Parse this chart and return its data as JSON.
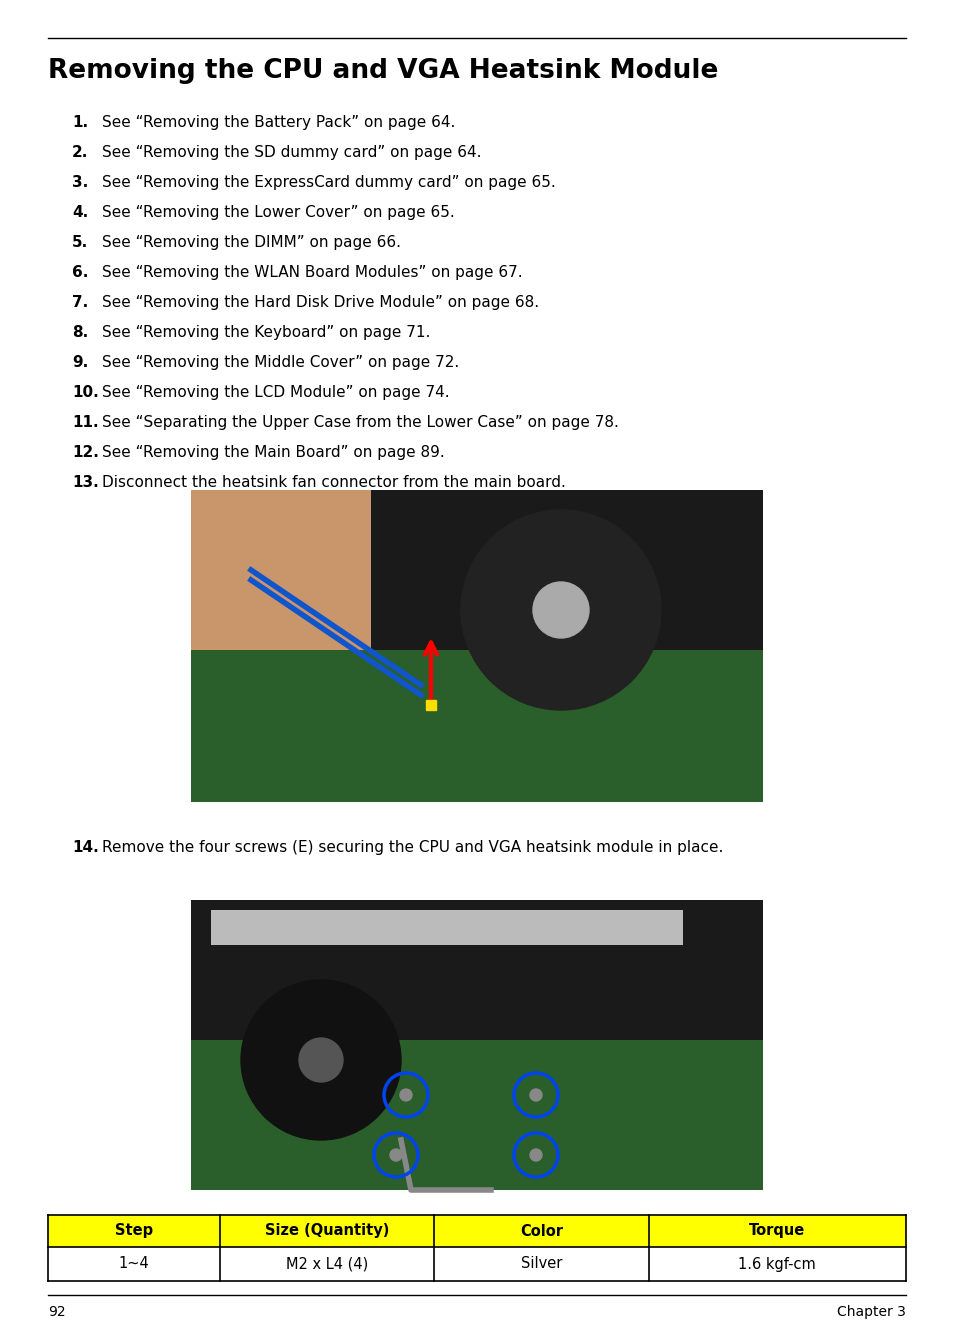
{
  "title": "Removing the CPU and VGA Heatsink Module",
  "steps": [
    {
      "num": "1.",
      "text": "See “Removing the Battery Pack” on page 64."
    },
    {
      "num": "2.",
      "text": "See “Removing the SD dummy card” on page 64."
    },
    {
      "num": "3.",
      "text": "See “Removing the ExpressCard dummy card” on page 65."
    },
    {
      "num": "4.",
      "text": "See “Removing the Lower Cover” on page 65."
    },
    {
      "num": "5.",
      "text": "See “Removing the DIMM” on page 66."
    },
    {
      "num": "6.",
      "text": "See “Removing the WLAN Board Modules” on page 67."
    },
    {
      "num": "7.",
      "text": "See “Removing the Hard Disk Drive Module” on page 68."
    },
    {
      "num": "8.",
      "text": "See “Removing the Keyboard” on page 71."
    },
    {
      "num": "9.",
      "text": "See “Removing the Middle Cover” on page 72."
    },
    {
      "num": "10.",
      "text": "See “Removing the LCD Module” on page 74."
    },
    {
      "num": "11.",
      "text": "See “Separating the Upper Case from the Lower Case” on page 78."
    },
    {
      "num": "12.",
      "text": "See “Removing the Main Board” on page 89."
    },
    {
      "num": "13.",
      "text": "Disconnect the heatsink fan connector from the main board."
    }
  ],
  "step14_num": "14.",
  "step14_text": "Remove the four screws (E) securing the CPU and VGA heatsink module in place.",
  "table_headers": [
    "Step",
    "Size (Quantity)",
    "Color",
    "Torque"
  ],
  "table_row": [
    "1~4",
    "M2 x L4 (4)",
    "Silver",
    "1.6 kgf-cm"
  ],
  "table_header_bg": "#FFFF00",
  "table_border": "#000000",
  "page_num": "92",
  "chapter": "Chapter 3",
  "bg_color": "#FFFFFF",
  "text_color": "#000000"
}
